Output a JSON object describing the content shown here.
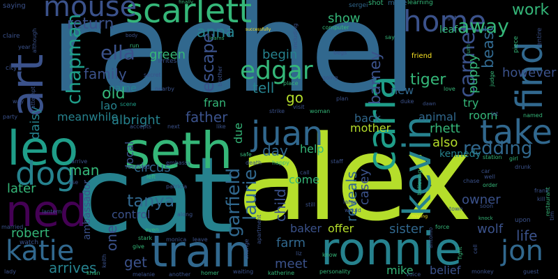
{
  "background_color": "#000000",
  "palette": {
    "purple": "#440154",
    "indigo": "#482677",
    "slate": "#3b528b",
    "blue": "#31688e",
    "teal": "#26828e",
    "cyan": "#1f9e89",
    "green": "#35b779",
    "lime": "#6ece58",
    "yellowgreen": "#b5de2b",
    "yellow": "#fde725"
  },
  "words": {
    "w1": "rachel",
    "w2": "alex",
    "w3": "cat",
    "w4": "seth",
    "w5": "leo",
    "w6": "ronnie",
    "w7": "train",
    "w8": "art",
    "w9": "ned",
    "w10": "scarlett",
    "w11": "mouse",
    "w12": "home",
    "w13": "find",
    "w14": "kevin",
    "w15": "carla",
    "w16": "juan",
    "w17": "take",
    "w18": "dog",
    "w19": "katie",
    "w20": "jon",
    "w21": "edgar",
    "w22": "carmel",
    "w23": "ella",
    "w24": "chapman",
    "w25": "tanya",
    "w26": "garfield",
    "w27": "laurie",
    "w28": "redding",
    "w29": "away",
    "w30": "work",
    "w31": "anna",
    "w32": "return",
    "w33": "show",
    "w34": "family",
    "w35": "old",
    "w36": "green",
    "w37": "escape",
    "w38": "begin",
    "w39": "tell",
    "w40": "go",
    "w41": "barney",
    "w42": "puppy",
    "w43": "beast",
    "w44": "however",
    "w45": "tiger",
    "w46": "new",
    "w47": "try",
    "w48": "name",
    "w49": "lao",
    "w50": "fran",
    "w51": "father",
    "w52": "albright",
    "w53": "meanwhile",
    "w54": "daisy",
    "w55": "man",
    "w56": "later",
    "w57": "robert",
    "w58": "circus",
    "w59": "control",
    "w60": "one",
    "w61": "get",
    "w62": "arrives",
    "w63": "meet",
    "w64": "farm",
    "w65": "child",
    "w66": "reveals",
    "w67": "casey",
    "w68": "mother",
    "w69": "back",
    "w70": "animal",
    "w71": "room",
    "w72": "rhett",
    "w73": "also",
    "w74": "day",
    "w75": "help",
    "w76": "kennedy",
    "w77": "owner",
    "w78": "wolf",
    "w79": "life",
    "w80": "sister",
    "w81": "offer",
    "w82": "baker",
    "w83": "come",
    "w84": "belief",
    "w85": "mike",
    "w86": "local",
    "w87": "due",
    "w88": "ambassador",
    "w89": "leaf",
    "w90": "friend",
    "w91": "saying",
    "w92": "finally",
    "w93": "sergei",
    "w94": "shot",
    "w95": "make",
    "w96": "learning",
    "w97": "night",
    "w98": "claire",
    "w99": "year",
    "w100": "city",
    "w101": "way",
    "w102": "party",
    "w103": "although",
    "w104": "uncle",
    "w105": "body",
    "w106": "learns",
    "w107": "successfully",
    "w108": "including",
    "w109": "computer",
    "w110": "begs",
    "w111": "say",
    "w112": "turn",
    "w113": "piece",
    "w114": "entire",
    "w115": "run",
    "w116": "writes",
    "w117": "secret",
    "w118": "brother",
    "w119": "attempt",
    "w120": "nearby",
    "w121": "scene",
    "w122": "accepts",
    "w123": "next",
    "w124": "like",
    "w125": "place",
    "w126": "going",
    "w127": "plan",
    "w128": "duke",
    "w129": "love",
    "w130": "judge",
    "w131": "let",
    "w132": "named",
    "w133": "visit",
    "w134": "woman",
    "w135": "strike",
    "w136": "dawn",
    "w137": "restaurant",
    "w138": "girl",
    "w139": "drunk",
    "w140": "station",
    "w141": "staff",
    "w142": "happy",
    "w143": "call",
    "w144": "death",
    "w145": "safe",
    "w146": "embassy",
    "w147": "revealed",
    "w148": "left",
    "w149": "lantern",
    "w150": "arrive",
    "w151": "use",
    "w152": "patricia",
    "w153": "along",
    "w154": "still",
    "w155": "large",
    "w156": "would",
    "w157": "town",
    "w158": "chase",
    "w159": "order",
    "w160": "well",
    "w161": "car",
    "w162": "frank",
    "w163": "kill",
    "w164": "soon",
    "w165": "knock",
    "w166": "upon",
    "w167": "force",
    "w168": "missing",
    "w169": "married",
    "w170": "watch",
    "w171": "even",
    "w172": "stark",
    "w173": "give",
    "w174": "leave",
    "w175": "monica",
    "w176": "change",
    "w177": "apartment",
    "w178": "believing",
    "w179": "liz",
    "w180": "antonio",
    "w181": "fight",
    "w182": "cell",
    "w183": "khan",
    "w184": "keith",
    "w185": "melanie",
    "w186": "another",
    "w187": "homer",
    "w188": "waiting",
    "w189": "katherine",
    "w190": "know",
    "w191": "personality",
    "w192": "voice",
    "w193": "monkey",
    "w194": "guest",
    "w195": "lady",
    "w196": "tim"
  }
}
